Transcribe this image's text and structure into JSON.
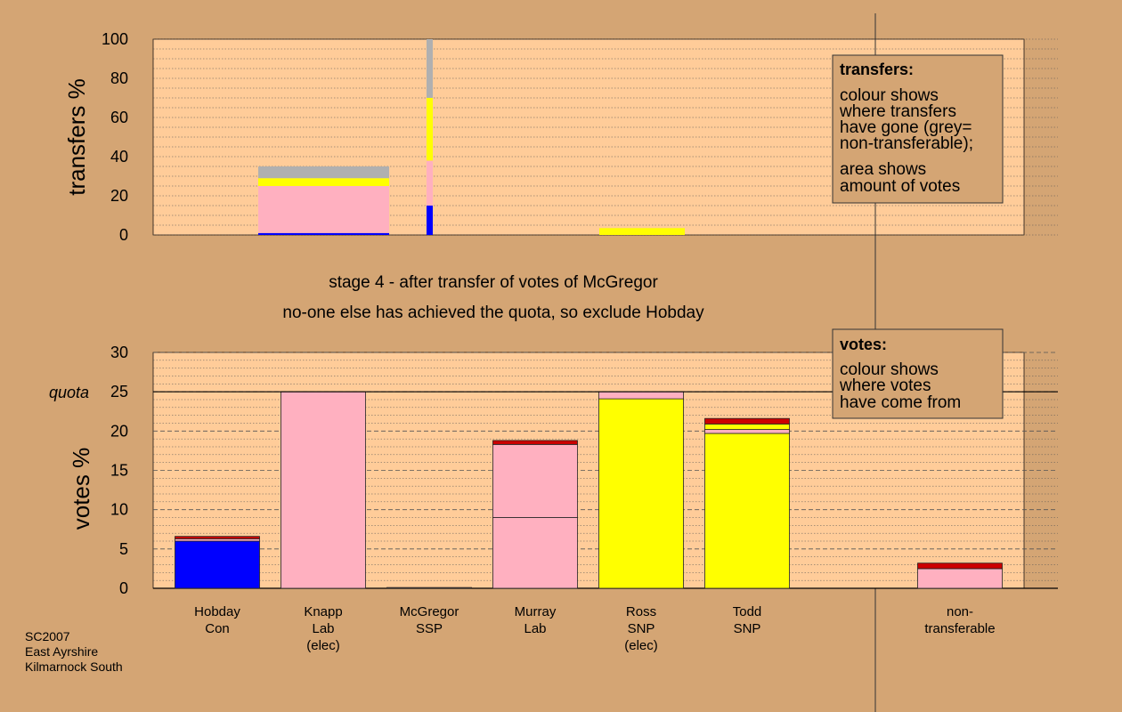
{
  "chart_data": [
    {
      "type": "bar",
      "name": "transfers",
      "ylabel": "transfers %",
      "ylim": [
        0,
        100
      ],
      "yticks": [
        0,
        20,
        40,
        60,
        80,
        100
      ],
      "bars": [
        {
          "category": "Hobday",
          "segments": [
            {
              "color": "#0000ff",
              "value": 1
            },
            {
              "color": "#ffb0c0",
              "value": 24
            },
            {
              "color": "#ffff00",
              "value": 4
            },
            {
              "color": "#b0b0b0",
              "value": 6
            }
          ]
        },
        {
          "category": "Murray",
          "segments": [
            {
              "color": "#0000ff",
              "value": 15
            },
            {
              "color": "#ffb0c0",
              "value": 23
            },
            {
              "color": "#ffff00",
              "value": 32
            },
            {
              "color": "#b0b0b0",
              "value": 30
            }
          ]
        },
        {
          "category": "Ross",
          "segments": [
            {
              "color": "#ffff00",
              "value": 3.5
            }
          ]
        }
      ],
      "legend_box": {
        "title": "transfers:",
        "lines": [
          "colour shows",
          "where transfers",
          "have gone (grey=",
          "non-transferable);",
          "area shows",
          "amount of votes"
        ]
      }
    },
    {
      "type": "bar",
      "name": "votes",
      "ylabel": "votes %",
      "ylim": [
        0,
        30
      ],
      "yticks": [
        0,
        5,
        10,
        15,
        20,
        25,
        30
      ],
      "quota": {
        "value": 25,
        "label": "quota"
      },
      "categories": [
        {
          "lines": [
            "Hobday",
            "Con"
          ]
        },
        {
          "lines": [
            "Knapp",
            "Lab",
            "(elec)"
          ]
        },
        {
          "lines": [
            "McGregor",
            "SSP"
          ]
        },
        {
          "lines": [
            "Murray",
            "Lab"
          ]
        },
        {
          "lines": [
            "Ross",
            "SNP",
            "(elec)"
          ]
        },
        {
          "lines": [
            "Todd",
            "SNP"
          ]
        },
        {
          "lines": [
            "non-",
            "transferable"
          ]
        }
      ],
      "bars": [
        [
          {
            "color": "#0000ff",
            "value": 6
          },
          {
            "color": "#ffb0c0",
            "value": 0.3
          },
          {
            "color": "#cc0000",
            "value": 0.3
          }
        ],
        [
          {
            "color": "#ffb0c0",
            "value": 25
          }
        ],
        [
          {
            "color": "#ffb0c0",
            "value": 0.1
          }
        ],
        [
          {
            "color": "#ffb0c0",
            "value": 9
          },
          {
            "color": "#ffb0c0",
            "value": 9.3
          },
          {
            "color": "#cc0000",
            "value": 0.5
          }
        ],
        [
          {
            "color": "#ffff00",
            "value": 24.1
          },
          {
            "color": "#ffb0c0",
            "value": 0.9
          }
        ],
        [
          {
            "color": "#ffff00",
            "value": 19.7
          },
          {
            "color": "#ffb0c0",
            "value": 0.5
          },
          {
            "color": "#ffff00",
            "value": 0.7
          },
          {
            "color": "#cc0000",
            "value": 0.7
          }
        ],
        [
          {
            "color": "#ffb0c0",
            "value": 2.5
          },
          {
            "color": "#cc0000",
            "value": 0.7
          }
        ]
      ],
      "legend_box": {
        "title": "votes:",
        "lines": [
          "colour shows",
          "where votes",
          "have come from"
        ]
      }
    }
  ],
  "captions": {
    "stage": "stage 4 - after transfer of votes of McGregor",
    "note": "no-one else has achieved the quota, so exclude Hobday"
  },
  "source": [
    "SC2007",
    "East Ayrshire",
    "Kilmarnock South"
  ],
  "colors": {
    "background": "#d4a574",
    "plot": "#ffcc99"
  }
}
